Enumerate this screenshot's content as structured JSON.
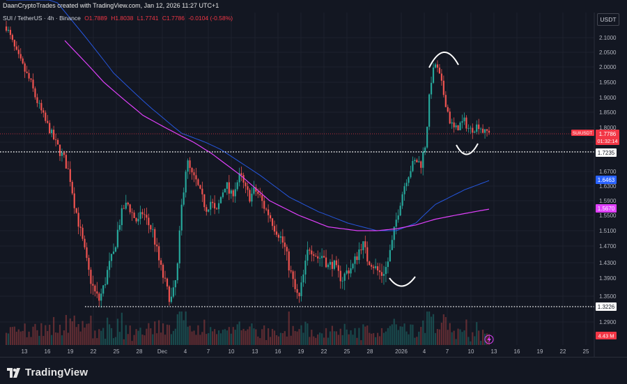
{
  "header": {
    "credit": "DaanCryptoTrades created with TradingView.com, Jan 12, 2026 11:27 UTC+1",
    "unit_button": "USDT"
  },
  "legend": {
    "symbol": "SUI / TetherUS · 4h · Binance",
    "open": "O1.7889",
    "high": "H1.8038",
    "low": "L1.7741",
    "close": "C1.7786",
    "change": "-0.0104 (-0.58%)"
  },
  "footer": {
    "brand": "TradingView"
  },
  "colors": {
    "background": "#131722",
    "up": "#26a69a",
    "down": "#ef5350",
    "ma_slow": "#2962ff",
    "ma_fast": "#e040fb",
    "price_tag": "#f23645"
  },
  "chart_data": {
    "type": "candlestick",
    "y_ticks": [
      "2.1000",
      "2.0500",
      "2.0000",
      "1.9500",
      "1.9000",
      "1.8500",
      "1.8000",
      "1.7500",
      "1.6700",
      "1.6300",
      "1.5900",
      "1.5500",
      "1.5100",
      "1.4700",
      "1.4300",
      "1.3900",
      "1.3500",
      "1.2900"
    ],
    "x_ticks": [
      "13",
      "16",
      "19",
      "22",
      "25",
      "28",
      "Dec",
      "4",
      "7",
      "10",
      "13",
      "16",
      "19",
      "22",
      "25",
      "28",
      "2026",
      "4",
      "7",
      "10",
      "13",
      "16",
      "19",
      "22",
      "25"
    ],
    "price_labels": [
      {
        "value": "1.7786",
        "name": "SUIUSDT",
        "timer": "01:32:14",
        "color": "#f23645"
      },
      {
        "value": "1.7235",
        "color": "#ffffff"
      },
      {
        "value": "1.6463",
        "color": "#2962ff"
      },
      {
        "value": "1.5670",
        "color": "#e040fb"
      },
      {
        "value": "1.3226",
        "color": "#ffffff"
      }
    ],
    "volume_label": "4.43 M",
    "horizontal_levels": [
      1.7235,
      1.3226
    ],
    "last_price": 1.7786,
    "price_path": [
      [
        0,
        2.14
      ],
      [
        2,
        2.05
      ],
      [
        4,
        1.98
      ],
      [
        5,
        1.95
      ],
      [
        6,
        1.9
      ],
      [
        8,
        1.82
      ],
      [
        9,
        1.79
      ],
      [
        10,
        1.75
      ],
      [
        12,
        1.7
      ],
      [
        13,
        1.66
      ],
      [
        14,
        1.58
      ],
      [
        15,
        1.52
      ],
      [
        16,
        1.46
      ],
      [
        17,
        1.4
      ],
      [
        18,
        1.36
      ],
      [
        19,
        1.34
      ],
      [
        20,
        1.37
      ],
      [
        21,
        1.42
      ],
      [
        22,
        1.45
      ],
      [
        23,
        1.52
      ],
      [
        24,
        1.57
      ],
      [
        25,
        1.58
      ],
      [
        26,
        1.55
      ],
      [
        27,
        1.53
      ],
      [
        28,
        1.56
      ],
      [
        29,
        1.53
      ],
      [
        30,
        1.51
      ],
      [
        31,
        1.45
      ],
      [
        32,
        1.4
      ],
      [
        33,
        1.36
      ],
      [
        34,
        1.34
      ],
      [
        35,
        1.4
      ],
      [
        36,
        1.58
      ],
      [
        37,
        1.7
      ],
      [
        38,
        1.66
      ],
      [
        39,
        1.64
      ],
      [
        40,
        1.6
      ],
      [
        41,
        1.57
      ],
      [
        42,
        1.59
      ],
      [
        43,
        1.55
      ],
      [
        44,
        1.6
      ],
      [
        45,
        1.64
      ],
      [
        46,
        1.6
      ],
      [
        47,
        1.63
      ],
      [
        48,
        1.66
      ],
      [
        49,
        1.62
      ],
      [
        50,
        1.6
      ],
      [
        51,
        1.62
      ],
      [
        52,
        1.6
      ],
      [
        53,
        1.57
      ],
      [
        54,
        1.55
      ],
      [
        55,
        1.52
      ],
      [
        56,
        1.5
      ],
      [
        57,
        1.47
      ],
      [
        58,
        1.42
      ],
      [
        59,
        1.37
      ],
      [
        60,
        1.34
      ],
      [
        61,
        1.4
      ],
      [
        62,
        1.47
      ],
      [
        63,
        1.46
      ],
      [
        64,
        1.44
      ],
      [
        65,
        1.45
      ],
      [
        66,
        1.42
      ],
      [
        67,
        1.43
      ],
      [
        68,
        1.4
      ],
      [
        69,
        1.39
      ],
      [
        70,
        1.41
      ],
      [
        71,
        1.42
      ],
      [
        72,
        1.45
      ],
      [
        73,
        1.48
      ],
      [
        74,
        1.44
      ],
      [
        75,
        1.43
      ],
      [
        76,
        1.41
      ],
      [
        77,
        1.4
      ],
      [
        78,
        1.42
      ],
      [
        79,
        1.47
      ],
      [
        80,
        1.54
      ],
      [
        81,
        1.6
      ],
      [
        82,
        1.65
      ],
      [
        83,
        1.68
      ],
      [
        84,
        1.7
      ],
      [
        85,
        1.69
      ],
      [
        86,
        1.75
      ],
      [
        87,
        1.95
      ],
      [
        88,
        2.01
      ],
      [
        89,
        1.96
      ],
      [
        90,
        1.89
      ],
      [
        91,
        1.82
      ],
      [
        92,
        1.79
      ],
      [
        93,
        1.81
      ],
      [
        94,
        1.82
      ],
      [
        95,
        1.79
      ],
      [
        96,
        1.8
      ],
      [
        97,
        1.81
      ],
      [
        98,
        1.78
      ],
      [
        99,
        1.79
      ]
    ],
    "ma_slow": [
      [
        0,
        2.45
      ],
      [
        14,
        2.15
      ],
      [
        22,
        1.98
      ],
      [
        30,
        1.86
      ],
      [
        36,
        1.78
      ],
      [
        44,
        1.73
      ],
      [
        52,
        1.66
      ],
      [
        58,
        1.6
      ],
      [
        64,
        1.56
      ],
      [
        70,
        1.53
      ],
      [
        76,
        1.51
      ],
      [
        80,
        1.51
      ],
      [
        84,
        1.53
      ],
      [
        88,
        1.58
      ],
      [
        94,
        1.62
      ],
      [
        99,
        1.645
      ]
    ],
    "ma_fast": [
      [
        12,
        2.09
      ],
      [
        20,
        1.95
      ],
      [
        28,
        1.84
      ],
      [
        36,
        1.77
      ],
      [
        42,
        1.72
      ],
      [
        48,
        1.66
      ],
      [
        54,
        1.59
      ],
      [
        60,
        1.55
      ],
      [
        66,
        1.52
      ],
      [
        72,
        1.51
      ],
      [
        76,
        1.51
      ],
      [
        80,
        1.515
      ],
      [
        84,
        1.525
      ],
      [
        88,
        1.54
      ],
      [
        94,
        1.555
      ],
      [
        99,
        1.567
      ]
    ]
  }
}
